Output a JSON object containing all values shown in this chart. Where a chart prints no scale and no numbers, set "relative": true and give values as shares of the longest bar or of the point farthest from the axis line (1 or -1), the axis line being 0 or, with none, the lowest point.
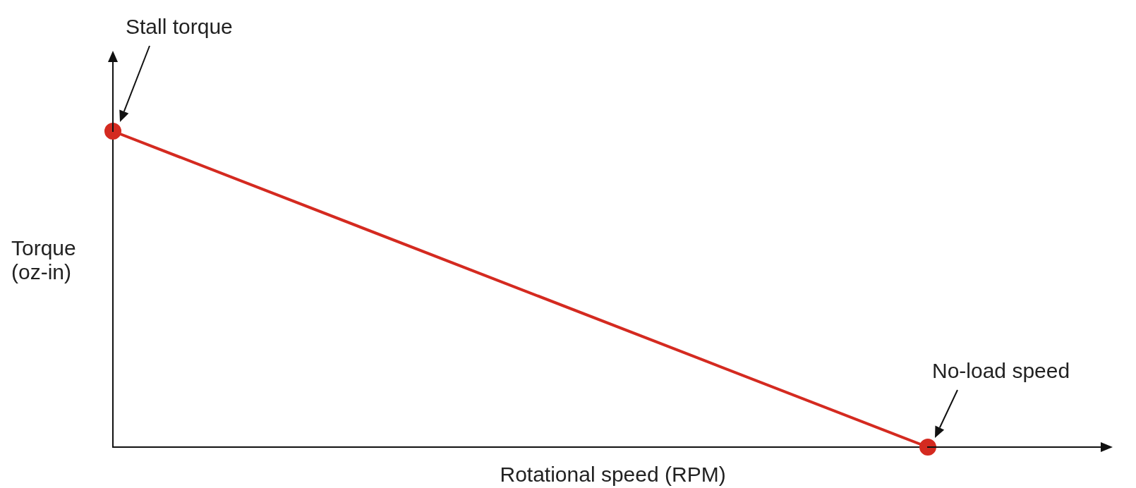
{
  "chart_data": {
    "type": "line",
    "xlabel": "Rotational speed (RPM)",
    "ylabel": "Torque (oz-in)",
    "categories": [
      null,
      null
    ],
    "series": [
      {
        "color": "#d42a20",
        "values": [
          1,
          0
        ]
      }
    ],
    "relative": true,
    "marker": "circle",
    "line_style": "solid",
    "grid": false,
    "legend": false,
    "annotations": [
      "Stall torque",
      "No-load speed"
    ]
  }
}
